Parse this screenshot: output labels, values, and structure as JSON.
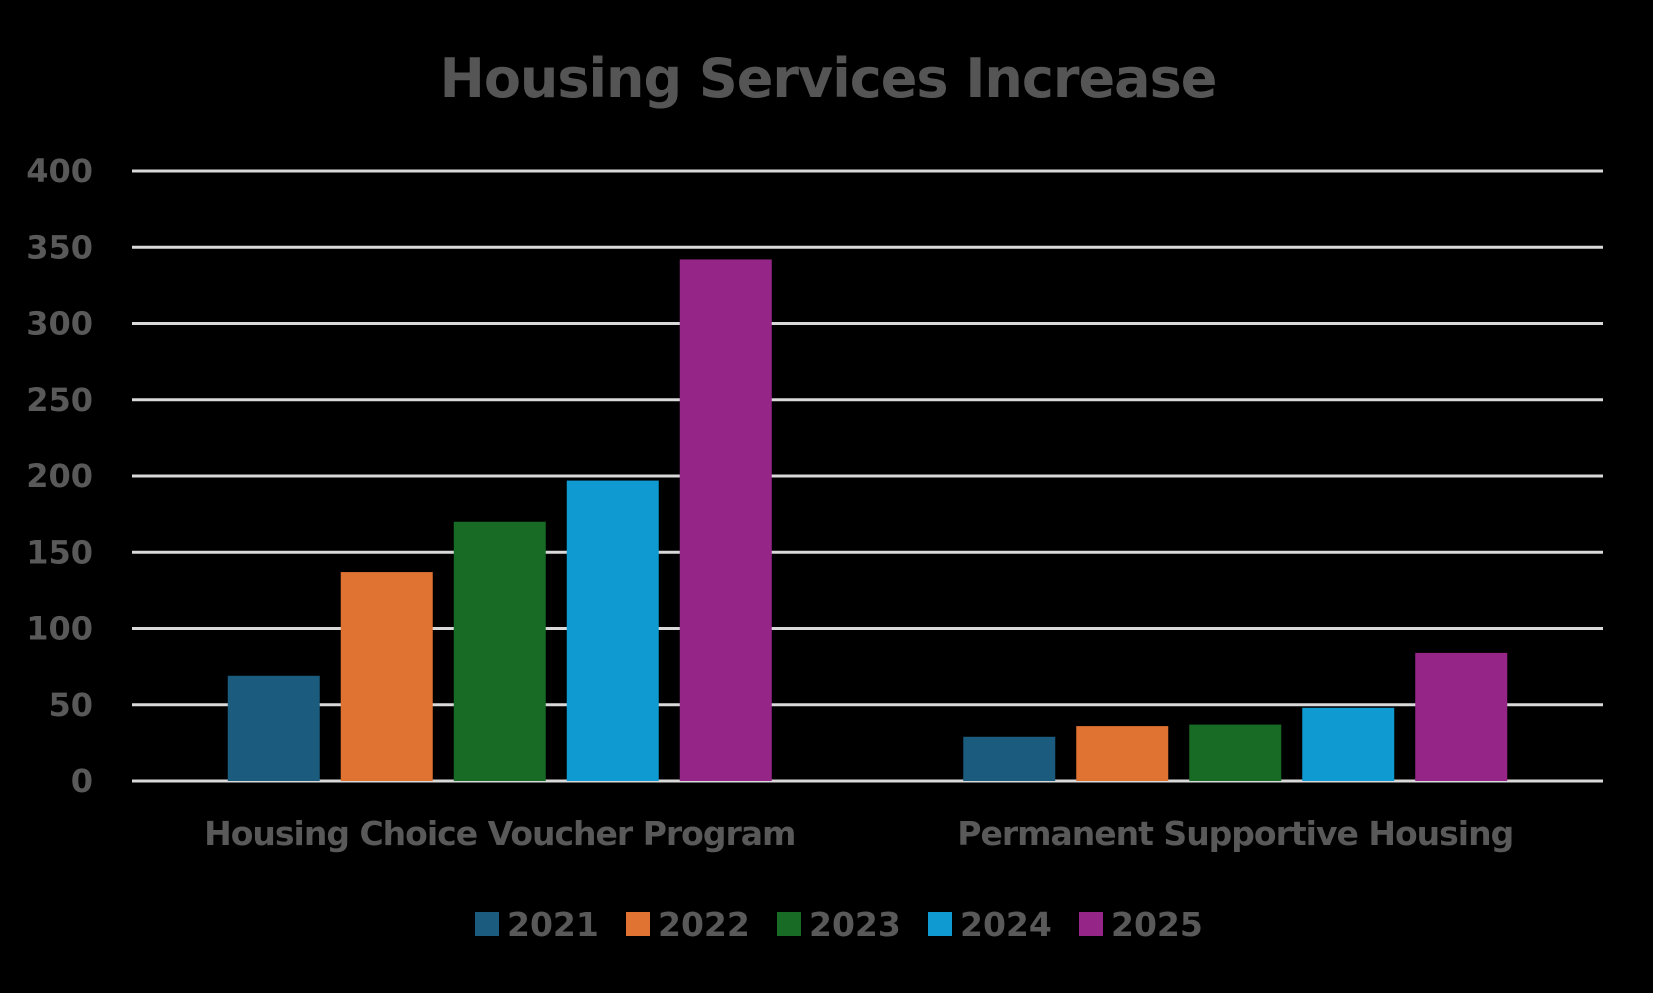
{
  "chart_data": {
    "type": "bar",
    "title": "Housing Services Increase",
    "xlabel": "",
    "ylabel": "",
    "ylim": [
      0,
      400
    ],
    "yticks": [
      0,
      50,
      100,
      150,
      200,
      250,
      300,
      350,
      400
    ],
    "grid": true,
    "legend_position": "bottom",
    "categories": [
      "Housing Choice Voucher Program",
      "Permanent Supportive Housing"
    ],
    "series": [
      {
        "name": "2021",
        "color": "#1b5c7e",
        "values": [
          69,
          29
        ]
      },
      {
        "name": "2022",
        "color": "#e07232",
        "values": [
          137,
          36
        ]
      },
      {
        "name": "2023",
        "color": "#176b24",
        "values": [
          170,
          37
        ]
      },
      {
        "name": "2024",
        "color": "#0f9bd2",
        "values": [
          197,
          48
        ]
      },
      {
        "name": "2025",
        "color": "#952688",
        "values": [
          342,
          84
        ]
      }
    ]
  }
}
